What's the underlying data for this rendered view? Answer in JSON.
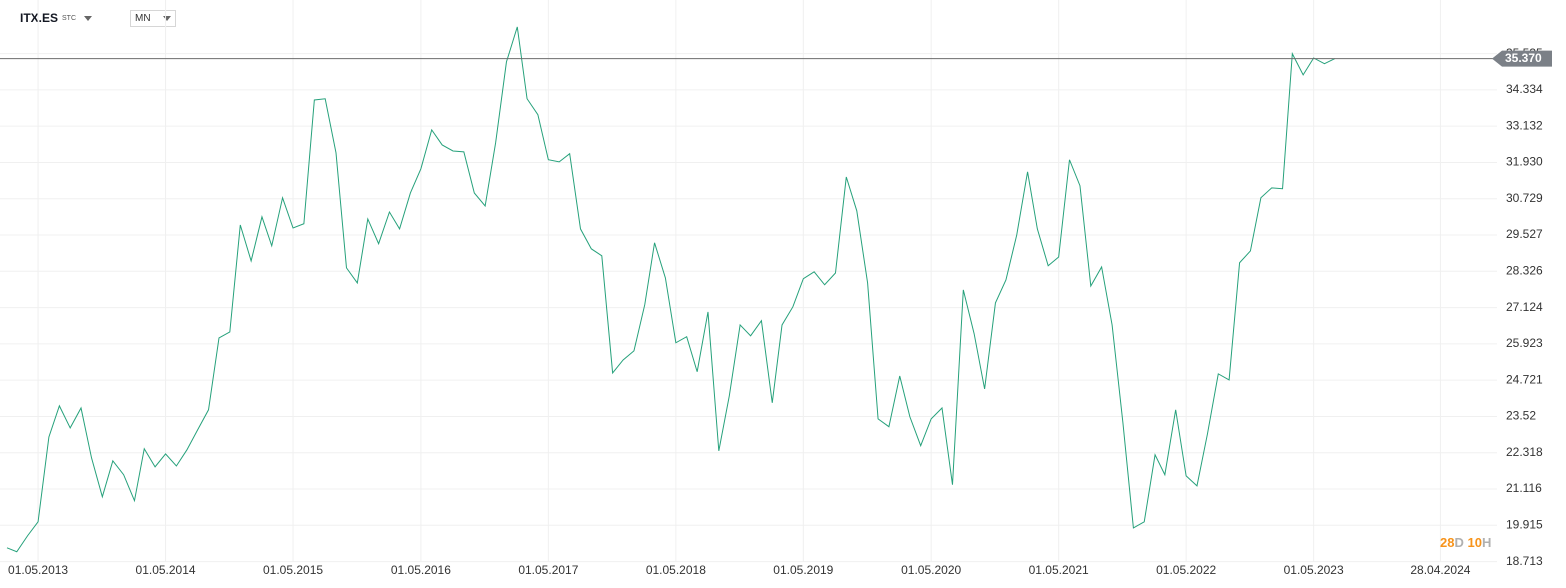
{
  "toolbar": {
    "symbol": "ITX.ES",
    "symbol_suffix": "STC",
    "interval": "MN"
  },
  "countdown": {
    "days": "28",
    "days_unit": "D",
    "hours": "10",
    "hours_unit": "H"
  },
  "chart_data": {
    "type": "line",
    "x": [
      "2013-02-01",
      "2013-03-01",
      "2013-04-01",
      "2013-05-01",
      "2013-06-01",
      "2013-07-01",
      "2013-08-01",
      "2013-09-01",
      "2013-10-01",
      "2013-11-01",
      "2013-12-01",
      "2014-01-01",
      "2014-02-01",
      "2014-03-01",
      "2014-04-01",
      "2014-05-01",
      "2014-06-01",
      "2014-07-01",
      "2014-08-01",
      "2014-09-01",
      "2014-10-01",
      "2014-11-01",
      "2014-12-01",
      "2015-01-01",
      "2015-02-01",
      "2015-03-01",
      "2015-04-01",
      "2015-05-01",
      "2015-06-01",
      "2015-07-01",
      "2015-08-01",
      "2015-09-01",
      "2015-10-01",
      "2015-11-01",
      "2015-12-01",
      "2016-01-01",
      "2016-02-01",
      "2016-03-01",
      "2016-04-01",
      "2016-05-01",
      "2016-06-01",
      "2016-07-01",
      "2016-08-01",
      "2016-09-01",
      "2016-10-01",
      "2016-11-01",
      "2016-12-01",
      "2017-01-01",
      "2017-02-01",
      "2017-03-01",
      "2017-04-01",
      "2017-05-01",
      "2017-06-01",
      "2017-07-01",
      "2017-08-01",
      "2017-09-01",
      "2017-10-01",
      "2017-11-01",
      "2017-12-01",
      "2018-01-01",
      "2018-02-01",
      "2018-03-01",
      "2018-04-01",
      "2018-05-01",
      "2018-06-01",
      "2018-07-01",
      "2018-08-01",
      "2018-09-01",
      "2018-10-01",
      "2018-11-01",
      "2018-12-01",
      "2019-01-01",
      "2019-02-01",
      "2019-03-01",
      "2019-04-01",
      "2019-05-01",
      "2019-06-01",
      "2019-07-01",
      "2019-08-01",
      "2019-09-01",
      "2019-10-01",
      "2019-11-01",
      "2019-12-01",
      "2020-01-01",
      "2020-02-01",
      "2020-03-01",
      "2020-04-01",
      "2020-05-01",
      "2020-06-01",
      "2020-07-01",
      "2020-08-01",
      "2020-09-01",
      "2020-10-01",
      "2020-11-01",
      "2020-12-01",
      "2021-01-01",
      "2021-02-01",
      "2021-03-01",
      "2021-04-01",
      "2021-05-01",
      "2021-06-01",
      "2021-07-01",
      "2021-08-01",
      "2021-09-01",
      "2021-10-01",
      "2021-11-01",
      "2021-12-01",
      "2022-01-01",
      "2022-02-01",
      "2022-03-01",
      "2022-04-01",
      "2022-05-01",
      "2022-06-01",
      "2022-07-01",
      "2022-08-01",
      "2022-09-01",
      "2022-10-01",
      "2022-11-01",
      "2022-12-01",
      "2023-01-01",
      "2023-02-01",
      "2023-03-01",
      "2023-04-01",
      "2023-05-01",
      "2023-06-01",
      "2023-07-01"
    ],
    "series": [
      {
        "name": "ITX.ES",
        "color": "#26a17b",
        "values": [
          19.17,
          19.04,
          19.57,
          20.03,
          22.84,
          23.87,
          23.14,
          23.8,
          22.15,
          20.86,
          22.05,
          21.59,
          20.73,
          22.45,
          21.85,
          22.28,
          21.88,
          22.41,
          23.08,
          23.74,
          26.12,
          26.32,
          29.86,
          28.67,
          30.13,
          29.17,
          30.76,
          29.76,
          29.9,
          34.0,
          34.04,
          32.25,
          28.44,
          27.94,
          30.06,
          29.24,
          30.29,
          29.73,
          30.92,
          31.72,
          33.01,
          32.51,
          32.31,
          32.28,
          30.92,
          30.49,
          32.58,
          35.26,
          36.42,
          34.04,
          33.51,
          32.02,
          31.95,
          32.22,
          29.73,
          29.07,
          28.84,
          24.96,
          25.39,
          25.69,
          27.22,
          29.27,
          28.11,
          25.96,
          26.16,
          25.0,
          26.98,
          22.38,
          24.2,
          26.55,
          26.19,
          26.69,
          23.97,
          26.55,
          27.15,
          28.08,
          28.31,
          27.88,
          28.27,
          31.45,
          30.33,
          27.94,
          23.44,
          23.18,
          24.86,
          23.51,
          22.55,
          23.44,
          23.8,
          21.26,
          27.71,
          26.26,
          24.43,
          27.28,
          28.04,
          29.53,
          31.62,
          29.73,
          28.51,
          28.8,
          32.02,
          31.16,
          27.84,
          28.47,
          26.55,
          23.31,
          19.83,
          20.03,
          22.25,
          21.59,
          23.74,
          21.55,
          21.22,
          22.94,
          24.93,
          24.73,
          28.61,
          29.0,
          30.76,
          31.09,
          31.06,
          35.53,
          34.83,
          35.39,
          35.2,
          35.37
        ]
      }
    ],
    "xlim": [
      "2013-01-12",
      "2024-10-07"
    ],
    "xticks": [
      {
        "value": "2013-05-01",
        "label": "01.05.2013"
      },
      {
        "value": "2014-05-01",
        "label": "01.05.2014"
      },
      {
        "value": "2015-05-01",
        "label": "01.05.2015"
      },
      {
        "value": "2016-05-01",
        "label": "01.05.2016"
      },
      {
        "value": "2017-05-01",
        "label": "01.05.2017"
      },
      {
        "value": "2018-05-01",
        "label": "01.05.2018"
      },
      {
        "value": "2019-05-01",
        "label": "01.05.2019"
      },
      {
        "value": "2020-05-01",
        "label": "01.05.2020"
      },
      {
        "value": "2021-05-01",
        "label": "01.05.2021"
      },
      {
        "value": "2022-05-01",
        "label": "01.05.2022"
      },
      {
        "value": "2023-05-01",
        "label": "01.05.2023"
      },
      {
        "value": "2024-04-28",
        "label": "28.04.2024"
      }
    ],
    "ylim": [
      18.7,
      37.31
    ],
    "yticks": [
      18.713,
      19.915,
      21.116,
      22.318,
      23.52,
      24.721,
      25.923,
      27.124,
      28.326,
      29.527,
      30.729,
      {
        "value": 31.93,
        "label": "31.930"
      },
      33.132,
      34.334,
      35.535
    ],
    "last_price": {
      "value": 35.37,
      "label": "35.370"
    },
    "grid": true
  }
}
